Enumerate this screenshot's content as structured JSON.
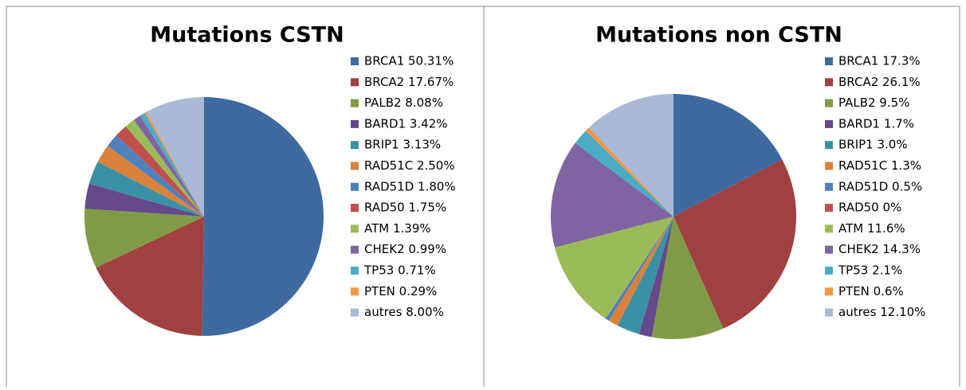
{
  "chart_data": [
    {
      "type": "pie",
      "title": "Mutations CSTN",
      "categories": [
        "BRCA1 50.31%",
        "BRCA2 17.67%",
        "PALB2 8.08%",
        "BARD1 3.42%",
        "BRIP1 3.13%",
        "RAD51C 2.50%",
        "RAD51D 1.80%",
        "RAD50 1.75%",
        "ATM 1.39%",
        "CHEK2 0.99%",
        "TP53 0.71%",
        "PTEN 0.29%",
        "autres 8.00%"
      ],
      "values": [
        50.31,
        17.67,
        8.08,
        3.42,
        3.13,
        2.5,
        1.8,
        1.75,
        1.39,
        0.99,
        0.71,
        0.29,
        8.0
      ],
      "colors": [
        "#3e6aa0",
        "#a04040",
        "#7f9c44",
        "#65498a",
        "#3a91a6",
        "#d9823b",
        "#4f81bd",
        "#c0504d",
        "#9bbb59",
        "#8064a2",
        "#4bacc6",
        "#f79646",
        "#a9b9d6"
      ],
      "legend": "right"
    },
    {
      "type": "pie",
      "title": "Mutations non CSTN",
      "categories": [
        "BRCA1 17.3%",
        "BRCA2 26.1%",
        "PALB2 9.5%",
        "BARD1 1.7%",
        "BRIP1 3.0%",
        "RAD51C 1.3%",
        "RAD51D 0.5%",
        "RAD50 0%",
        "ATM 11.6%",
        "CHEK2 14.3%",
        "TP53 2.1%",
        "PTEN 0.6%",
        "autres 12.10%"
      ],
      "values": [
        17.3,
        26.1,
        9.5,
        1.7,
        3.0,
        1.3,
        0.5,
        0,
        11.6,
        14.3,
        2.1,
        0.6,
        12.1
      ],
      "colors": [
        "#3e6aa0",
        "#a04040",
        "#7f9c44",
        "#65498a",
        "#3a91a6",
        "#d9823b",
        "#4f81bd",
        "#c0504d",
        "#9bbb59",
        "#8064a2",
        "#4bacc6",
        "#f79646",
        "#a9b9d6"
      ],
      "legend": "right"
    }
  ]
}
